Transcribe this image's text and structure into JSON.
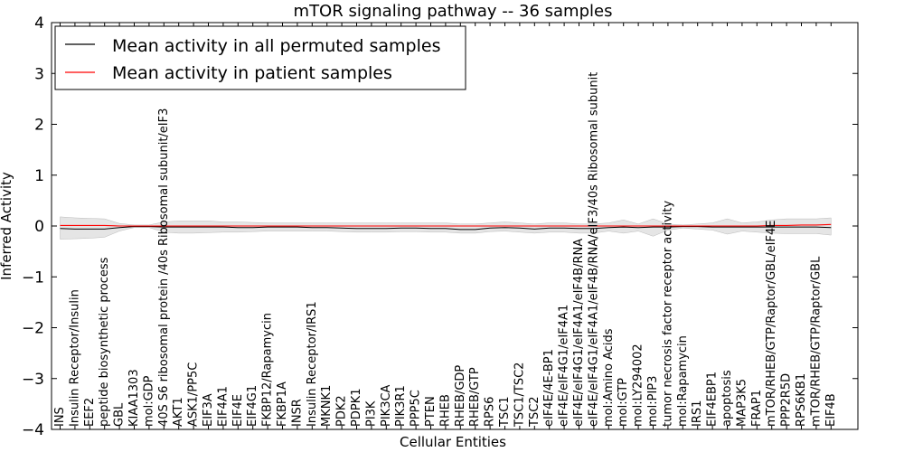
{
  "chart_data": {
    "type": "line",
    "title": "mTOR signaling pathway -- 36 samples",
    "xlabel": "Cellular Entities",
    "ylabel": "Inferred Activity",
    "ylim": [
      -4,
      4
    ],
    "yticks": [
      -4,
      -3,
      -2,
      -1,
      0,
      1,
      2,
      3,
      4
    ],
    "ytick_labels": [
      "−4",
      "−3",
      "−2",
      "−1",
      "0",
      "1",
      "2",
      "3",
      "4"
    ],
    "grid": false,
    "legend_position": "top-left",
    "categories": [
      "INS",
      "Insulin Receptor/Insulin",
      "EEF2",
      "peptide biosynthetic process",
      "GBL",
      "KIAA1303",
      "mol:GDP",
      "40S S6 ribosomal protein /40s Ribosomal subunit/eIF3",
      "AKT1",
      "ASK1/PP5C",
      "EIF3A",
      "EIF4A1",
      "EIF4E",
      "EIF4G1",
      "FKBP12/Rapamycin",
      "FKBP1A",
      "INSR",
      "Insulin Receptor/IRS1",
      "MKNK1",
      "PDK2",
      "PDPK1",
      "PI3K",
      "PIK3CA",
      "PIK3R1",
      "PPP5C",
      "PTEN",
      "RHEB",
      "RHEB/GDP",
      "RHEB/GTP",
      "RPS6",
      "TSC1",
      "TSC1/TSC2",
      "TSC2",
      "eIF4E/4E-BP1",
      "eIF4E/eIF4G1/eIF4A1",
      "eIF4E/eIF4G1/eIF4A1/eIF4B/RNA",
      "eIF4E/eIF4G1/eIF4A1/eIF4B/RNA/eIF3/40s Ribosomal subunit",
      "mol:Amino Acids",
      "mol:GTP",
      "mol:LY294002",
      "mol:PIP3",
      "tumor necrosis factor receptor activity",
      "mol:Rapamycin",
      "IRS1",
      "EIF4EBP1",
      "apoptosis",
      "MAP3K5",
      "FRAP1",
      "mTOR/RHEB/GTP/Raptor/GBL/eIF4E",
      "PPP2R5D",
      "RPS6KB1",
      "mTOR/RHEB/GTP/Raptor/GBL",
      "EIF4B"
    ],
    "series": [
      {
        "name": "Mean activity in all permuted samples",
        "color": "#000000",
        "values": [
          -0.05,
          -0.06,
          -0.06,
          -0.06,
          -0.03,
          -0.01,
          -0.01,
          -0.02,
          -0.02,
          -0.02,
          -0.02,
          -0.02,
          -0.03,
          -0.03,
          -0.02,
          -0.02,
          -0.02,
          -0.03,
          -0.03,
          -0.04,
          -0.05,
          -0.05,
          -0.05,
          -0.04,
          -0.04,
          -0.05,
          -0.05,
          -0.07,
          -0.07,
          -0.04,
          -0.03,
          -0.04,
          -0.06,
          -0.04,
          -0.04,
          -0.05,
          -0.05,
          -0.03,
          -0.02,
          -0.03,
          -0.02,
          -0.02,
          -0.01,
          -0.01,
          -0.02,
          -0.02,
          -0.02,
          -0.02,
          -0.02,
          -0.02,
          -0.02,
          -0.02,
          -0.03
        ]
      },
      {
        "name": "Mean activity in patient samples",
        "color": "#ff0000",
        "values": [
          0.01,
          0.01,
          0.01,
          0.01,
          0.0,
          0.0,
          0.0,
          0.0,
          0.0,
          0.0,
          0.0,
          0.0,
          0.0,
          0.0,
          0.0,
          0.0,
          0.0,
          0.0,
          0.0,
          0.0,
          0.0,
          0.0,
          0.0,
          0.0,
          0.0,
          0.0,
          0.0,
          0.0,
          0.0,
          0.0,
          0.0,
          0.0,
          0.0,
          0.0,
          0.0,
          0.0,
          0.0,
          0.0,
          0.0,
          0.0,
          0.0,
          0.0,
          0.0,
          0.0,
          0.0,
          0.0,
          0.0,
          0.0,
          0.01,
          0.01,
          0.02,
          0.02,
          0.03
        ]
      }
    ],
    "band": {
      "color": "#d3d3d3",
      "upper": [
        0.18,
        0.16,
        0.15,
        0.14,
        0.05,
        0.02,
        0.02,
        0.08,
        0.1,
        0.1,
        0.1,
        0.08,
        0.08,
        0.07,
        0.06,
        0.06,
        0.06,
        0.06,
        0.06,
        0.06,
        0.06,
        0.06,
        0.06,
        0.06,
        0.06,
        0.06,
        0.06,
        0.04,
        0.04,
        0.06,
        0.08,
        0.06,
        0.04,
        0.06,
        0.06,
        0.04,
        0.04,
        0.06,
        0.12,
        0.04,
        0.14,
        0.04,
        0.02,
        0.04,
        0.06,
        0.14,
        0.06,
        0.08,
        0.12,
        0.14,
        0.14,
        0.14,
        0.16
      ],
      "lower": [
        -0.26,
        -0.25,
        -0.24,
        -0.22,
        -0.1,
        -0.03,
        -0.03,
        -0.12,
        -0.14,
        -0.14,
        -0.13,
        -0.12,
        -0.12,
        -0.11,
        -0.1,
        -0.1,
        -0.1,
        -0.1,
        -0.1,
        -0.11,
        -0.12,
        -0.12,
        -0.12,
        -0.11,
        -0.11,
        -0.12,
        -0.12,
        -0.14,
        -0.14,
        -0.11,
        -0.1,
        -0.12,
        -0.14,
        -0.12,
        -0.12,
        -0.14,
        -0.14,
        -0.1,
        -0.14,
        -0.1,
        -0.2,
        -0.08,
        -0.04,
        -0.06,
        -0.08,
        -0.16,
        -0.1,
        -0.12,
        -0.14,
        -0.15,
        -0.15,
        -0.15,
        -0.18
      ]
    }
  }
}
